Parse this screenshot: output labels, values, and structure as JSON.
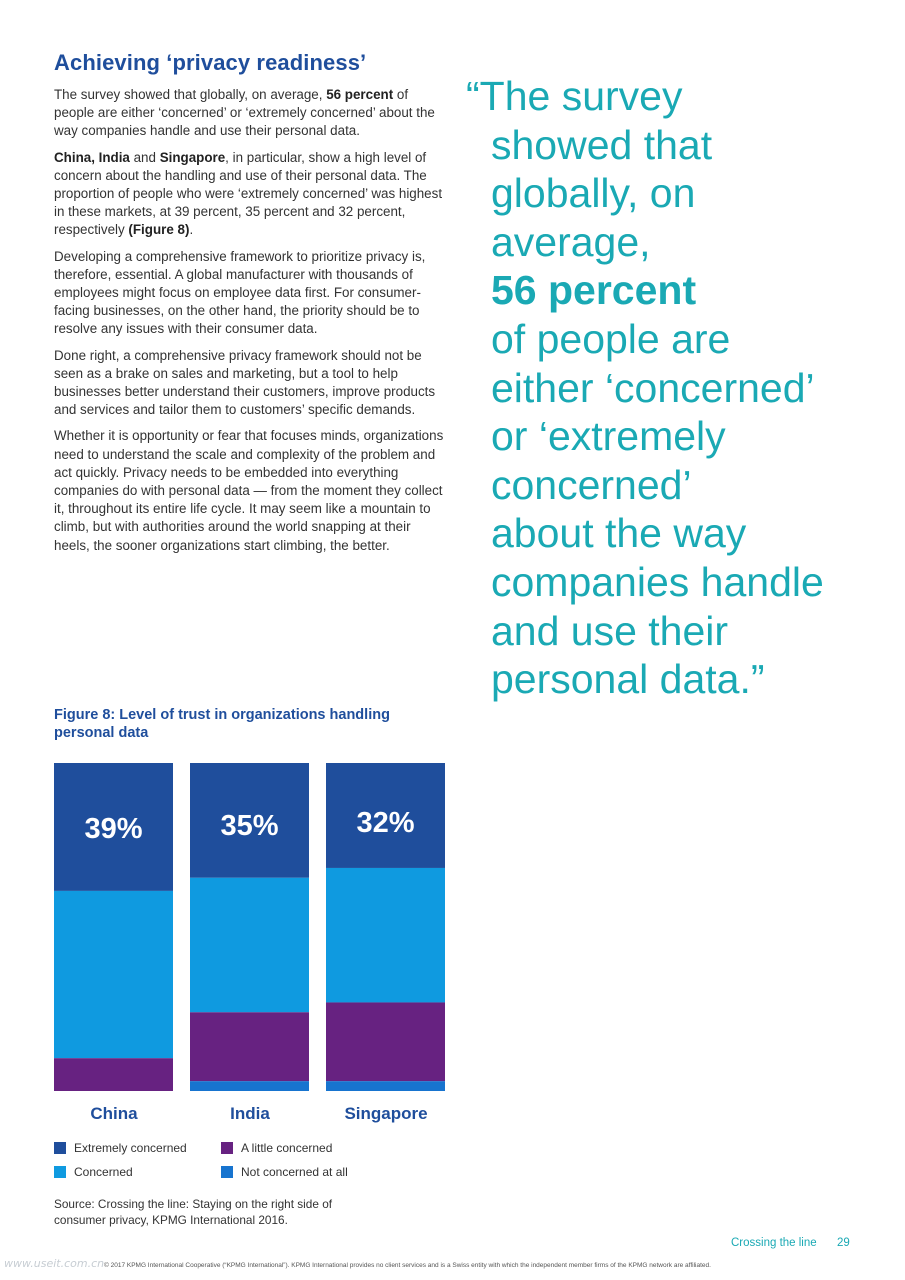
{
  "heading": "Achieving ‘privacy readiness’",
  "paragraphs": [
    [
      {
        "text": "The survey showed that globally, on average, "
      },
      {
        "text": "56 percent",
        "bold": true
      },
      {
        "text": " of people are either ‘concerned’ or ‘extremely concerned’ about the way companies handle and use their personal data."
      }
    ],
    [
      {
        "text": "China, India",
        "bold": true
      },
      {
        "text": " and "
      },
      {
        "text": "Singapore",
        "bold": true
      },
      {
        "text": ", in particular, show a high level of concern about the handling and use of their personal data. The proportion of people who were ‘extremely concerned’ was highest in these markets, at 39 percent, 35 percent and 32 percent, respectively "
      },
      {
        "text": "(Figure 8)",
        "bold": true
      },
      {
        "text": "."
      }
    ],
    [
      {
        "text": "Developing a comprehensive framework to prioritize privacy is, therefore, essential. A global manufacturer with thousands of employees might focus on employee data first. For consumer-facing businesses, on the other hand, the priority should be to resolve any issues with their consumer data."
      }
    ],
    [
      {
        "text": "Done right, a comprehensive privacy framework should not be seen as a brake on sales and marketing, but a tool to help businesses better understand their customers, improve products and services and tailor them to customers’ specific demands."
      }
    ],
    [
      {
        "text": "Whether it is opportunity or fear that focuses minds, organizations need to understand the scale and complexity of the problem and act quickly. Privacy needs to be embedded into everything companies do with personal data — from the moment they collect it, throughout its entire life cycle. It may seem like a mountain to climb, but with authorities around the world snapping at their heels, the sooner organizations start climbing, the better."
      }
    ]
  ],
  "pull_quote": {
    "lines": [
      {
        "text": "“The survey"
      },
      {
        "text": "showed that"
      },
      {
        "text": "globally, on"
      },
      {
        "text": "average,"
      },
      {
        "text": "56 percent",
        "bold": true
      },
      {
        "text": "of people are"
      },
      {
        "text": "either ‘concerned’"
      },
      {
        "text": "or ‘extremely"
      },
      {
        "text": "concerned’"
      },
      {
        "text": "about the way"
      },
      {
        "text": "companies handle"
      },
      {
        "text": "and use their"
      },
      {
        "text": "personal data.”"
      }
    ]
  },
  "figure_title": "Figure 8: Level of trust in organizations handling personal data",
  "chart_data": {
    "type": "bar",
    "stacked": true,
    "normalized": true,
    "title": "Figure 8: Level of trust in organizations handling personal data",
    "categories": [
      "China",
      "India",
      "Singapore"
    ],
    "series": [
      {
        "name": "Extremely concerned",
        "color": "#1f4e9c",
        "values": [
          39,
          35,
          32
        ]
      },
      {
        "name": "Concerned",
        "color": "#0f9ae0",
        "values": [
          51,
          41,
          41
        ]
      },
      {
        "name": "A little concerned",
        "color": "#672281",
        "values": [
          10,
          21,
          24
        ]
      },
      {
        "name": "Not concerned at all",
        "color": "#1774cf",
        "values": [
          0,
          3,
          3
        ]
      }
    ],
    "data_labels": [
      "39%",
      "35%",
      "32%"
    ],
    "ylim": [
      0,
      100
    ],
    "grid": false,
    "legend_position": "bottom"
  },
  "legend": [
    {
      "label": "Extremely concerned",
      "color": "#1f4e9c"
    },
    {
      "label": "A little concerned",
      "color": "#672281"
    },
    {
      "label": "Concerned",
      "color": "#0f9ae0"
    },
    {
      "label": "Not concerned at all",
      "color": "#1774cf"
    }
  ],
  "source": "Source: Crossing the line: Staying on the right side of consumer privacy, KPMG International 2016.",
  "footer": {
    "title": "Crossing the line",
    "page": "29",
    "copyright": "© 2017 KPMG International Cooperative (“KPMG International”). KPMG International provides no client services and is a Swiss entity with which the independent member firms of the KPMG network are affiliated.",
    "watermark": "www.useit.com.cn"
  },
  "colors": {
    "heading": "#1f4e9c",
    "quote": "#1aa9b4",
    "body_text": "#333333"
  }
}
